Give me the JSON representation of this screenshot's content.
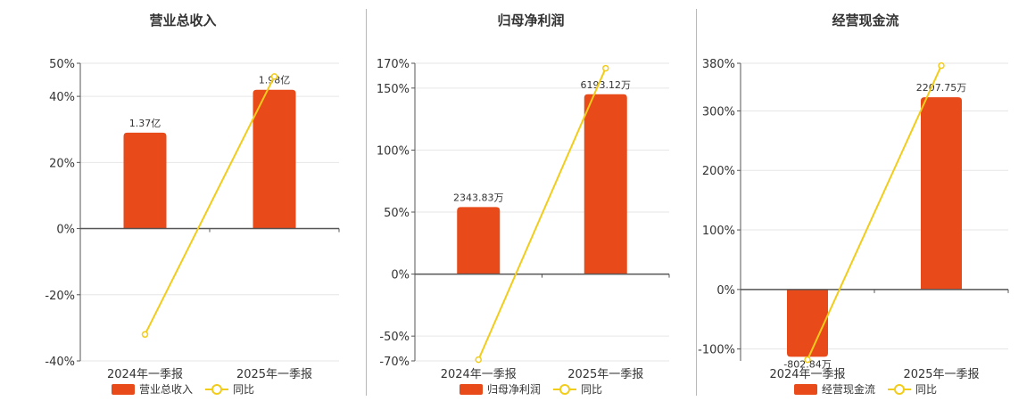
{
  "colors": {
    "bar": "#e84a1a",
    "line": "#f2cc1b",
    "grid": "#e6e6e6",
    "axis": "#555555"
  },
  "chart_data": [
    {
      "type": "bar",
      "title": "营业总收入",
      "categories": [
        "2024年一季报",
        "2025年一季报"
      ],
      "series": [
        {
          "name": "营业总收入",
          "kind": "bar",
          "values": [
            29,
            42
          ],
          "labels": [
            "1.37亿",
            "1.98亿"
          ]
        },
        {
          "name": "同比",
          "kind": "line",
          "values": [
            -32,
            46
          ]
        }
      ],
      "ylim": [
        -40,
        50
      ],
      "yticks": [
        50,
        40,
        20,
        0,
        -20,
        -40
      ],
      "ytick_labels": [
        "50%",
        "40%",
        "20%",
        "0%",
        "-20%",
        "-40%"
      ],
      "grid": true,
      "legend": "bottom"
    },
    {
      "type": "bar",
      "title": "归母净利润",
      "categories": [
        "2024年一季报",
        "2025年一季报"
      ],
      "series": [
        {
          "name": "归母净利润",
          "kind": "bar",
          "values": [
            54,
            145
          ],
          "labels": [
            "2343.83万",
            "6193.12万"
          ]
        },
        {
          "name": "同比",
          "kind": "line",
          "values": [
            -69,
            166
          ]
        }
      ],
      "ylim": [
        -70,
        170
      ],
      "yticks": [
        170,
        150,
        100,
        50,
        0,
        -50,
        -70
      ],
      "ytick_labels": [
        "170%",
        "150%",
        "100%",
        "50%",
        "0%",
        "-50%",
        "-70%"
      ],
      "grid": true,
      "legend": "bottom"
    },
    {
      "type": "bar",
      "title": "经营现金流",
      "categories": [
        "2024年一季报",
        "2025年一季报"
      ],
      "series": [
        {
          "name": "经营现金流",
          "kind": "bar",
          "values": [
            -113,
            323
          ],
          "labels": [
            "-802.84万",
            "2207.75万"
          ]
        },
        {
          "name": "同比",
          "kind": "line",
          "values": [
            -118,
            376
          ]
        }
      ],
      "ylim": [
        -120,
        380
      ],
      "yticks": [
        380,
        300,
        200,
        100,
        0,
        -100
      ],
      "ytick_labels": [
        "380%",
        "300%",
        "200%",
        "100%",
        "0%",
        "-100%"
      ],
      "grid": true,
      "legend": "bottom"
    }
  ]
}
